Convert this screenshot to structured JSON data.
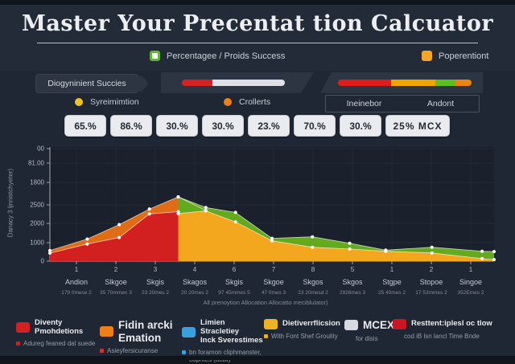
{
  "header": {
    "title": "Master Your Precentat tion Calcuator"
  },
  "top_legend": {
    "left": {
      "label": "Percentagee / Proids Success",
      "color": "#5fb82a"
    },
    "right": {
      "label": "Poperentiont",
      "color": "#f5a623"
    }
  },
  "controls": {
    "chip_label": "Diogyninient Succies",
    "bar1": {
      "segments": [
        {
          "color": "#d62222",
          "pct": 30
        },
        {
          "color": "#dde1e6",
          "pct": 70
        }
      ]
    },
    "bar2": {
      "segments": [
        {
          "color": "#df1d1d",
          "pct": 40
        },
        {
          "color": "#f0a400",
          "pct": 33
        },
        {
          "color": "#5bc120",
          "pct": 15
        },
        {
          "color": "#ec8412",
          "pct": 12
        }
      ]
    },
    "dot1": {
      "label": "Syreimimtion",
      "color": "#f0c21e"
    },
    "dot2": {
      "label": "Crollerts",
      "color": "#ee7e18"
    },
    "pair_box": {
      "left": "Ineinebor",
      "right": "Andont"
    }
  },
  "badges": [
    "65.%",
    "86.%",
    "30.%",
    "30.%",
    "23.%",
    "70.%",
    "30.%",
    "25%  MCX"
  ],
  "chart_data": {
    "type": "area",
    "title": "",
    "xlabel": "",
    "ylabel": "Danacy 3 ljnnistchyeter)",
    "ylim": [
      0,
      3000
    ],
    "grid": "faint",
    "legend_position": "none",
    "y_ticks": [
      {
        "label": "00",
        "y": 185
      },
      {
        "label": "81.00",
        "y": 203
      },
      {
        "label": "1800",
        "y": 227
      },
      {
        "label": "2500",
        "y": 255
      },
      {
        "label": "2000",
        "y": 278
      },
      {
        "label": "1000",
        "y": 302
      },
      {
        "label": "0",
        "y": 325
      }
    ],
    "x_ticks": [
      "1",
      "2",
      "3",
      "4",
      "6",
      "7",
      "8",
      "5",
      "1",
      "2",
      "1"
    ],
    "categories": [
      "Andion",
      "Slkgoe",
      "Skgis",
      "Skagos",
      "Skgis",
      "Skgoe",
      "Skgos",
      "Skgos",
      "Stgpe",
      "Stopoe",
      "Singoe"
    ],
    "cat_values": [
      "179 0mese 2",
      "35 70mmen 3",
      "23 20mes 2",
      "20 20mes 2",
      "97 45mmes 5",
      "47 0mes 3",
      "23 20mesd 2",
      "2926mes 3",
      "25 40mes 2",
      "17 53mmes 2",
      "352Emes 2"
    ],
    "caption": "All prenoytion Allocation Allocatto meciblulator)",
    "series": [
      {
        "name": "orange-area",
        "color": "#e06c15",
        "points": [
          [
            0,
            280
          ],
          [
            0.084,
            580
          ],
          [
            0.156,
            960
          ],
          [
            0.224,
            1370
          ],
          [
            0.289,
            1690
          ],
          [
            0.351,
            1330
          ]
        ]
      },
      {
        "name": "red-area",
        "color": "#d21f1f",
        "points": [
          [
            0,
            210
          ],
          [
            0.084,
            450
          ],
          [
            0.156,
            620
          ],
          [
            0.224,
            1240
          ],
          [
            0.289,
            1300
          ]
        ]
      },
      {
        "name": "green-area",
        "color": "#64aa1e",
        "points": [
          [
            0.289,
            1690
          ],
          [
            0.351,
            1410
          ],
          [
            0.418,
            1280
          ],
          [
            0.5,
            600
          ],
          [
            0.591,
            640
          ],
          [
            0.675,
            470
          ],
          [
            0.756,
            290
          ],
          [
            0.86,
            365
          ],
          [
            0.973,
            260
          ],
          [
            1,
            250
          ]
        ]
      },
      {
        "name": "yellow-area",
        "color": "#f2a71f",
        "points": [
          [
            0.289,
            1250
          ],
          [
            0.351,
            1320
          ],
          [
            0.418,
            1030
          ],
          [
            0.5,
            535
          ],
          [
            0.591,
            365
          ],
          [
            0.675,
            320
          ],
          [
            0.756,
            260
          ],
          [
            0.86,
            215
          ],
          [
            0.973,
            65
          ],
          [
            1,
            40
          ]
        ]
      }
    ]
  },
  "bottom_legend": [
    {
      "title": "Diventy Pmohdetions",
      "sub": "Adureg feaned dal suede",
      "color": "#d42020",
      "bullet": "#d42020"
    },
    {
      "title": "Fidin arcki Emation",
      "sub": "Asieyfersicuranse",
      "color": "#ee7e18",
      "bullet": "#cc3333",
      "big": true
    },
    {
      "title": "Limien Stracletiey\nInck Sverestimes",
      "sub": "bn foramon cliphmanster, copntes (aciik)",
      "color": "#3aa0dd",
      "bullet": "#3aa0dd"
    },
    {
      "title": "Dietiverrflicsion",
      "sub": "With  Font Shef Groulity",
      "color": "#f0b320",
      "bullet": "#e8b020"
    },
    {
      "title": "MCEX",
      "sub": "for disis",
      "color": "#d7dbdf",
      "big": true
    },
    {
      "title": "Resttent:iplesl oc tlow",
      "sub": "cod iB lsn lancl Time Bnde",
      "color": "#cc1522"
    }
  ]
}
